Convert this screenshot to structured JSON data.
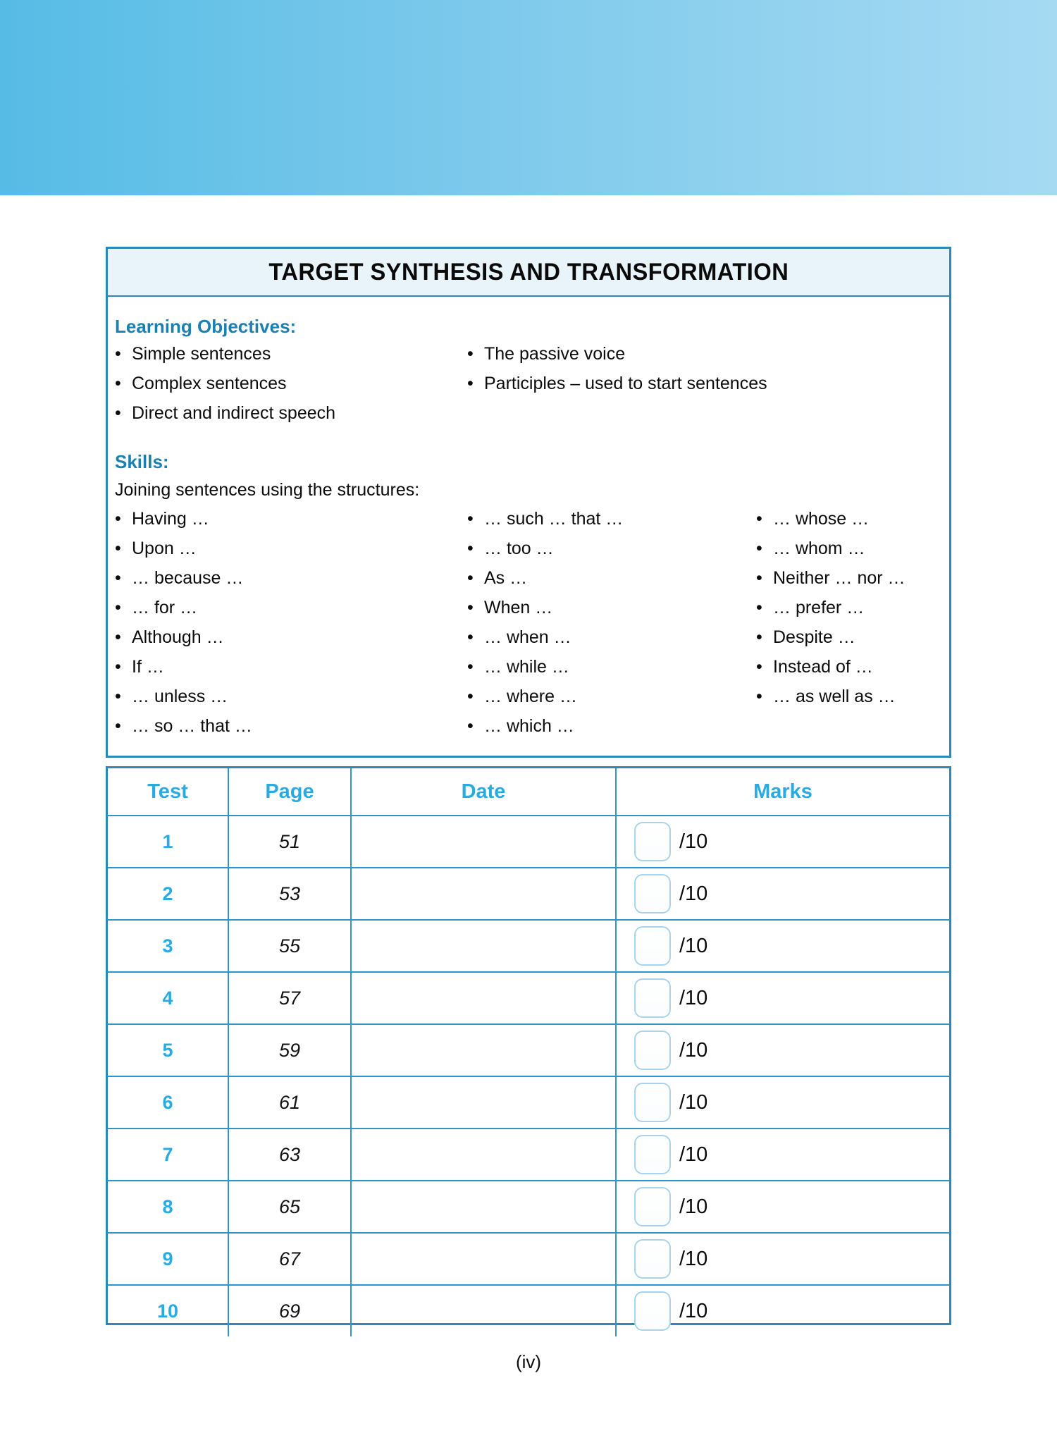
{
  "page": {
    "footer": "(iv)"
  },
  "panel": {
    "title": "TARGET SYNTHESIS AND TRANSFORMATION",
    "learning_objectives": {
      "heading": "Learning Objectives:",
      "col1": [
        "Simple sentences",
        "Complex sentences",
        "Direct and indirect speech"
      ],
      "col2": [
        "The passive voice",
        "Participles – used to start sentences"
      ]
    },
    "skills": {
      "heading": "Skills:",
      "intro": "Joining sentences using the structures:",
      "col1": [
        "Having …",
        "Upon …",
        "… because …",
        "… for …",
        "Although …",
        "If …",
        "… unless …",
        "… so … that …"
      ],
      "col2": [
        "… such … that …",
        "… too …",
        "As …",
        "When …",
        "… when …",
        "… while …",
        "… where …",
        "… which …"
      ],
      "col3": [
        "… whose …",
        "… whom …",
        "Neither … nor …",
        "… prefer …",
        "Despite …",
        "Instead of …",
        "… as well as …"
      ]
    }
  },
  "table": {
    "headers": [
      "Test",
      "Page",
      "Date",
      "Marks"
    ],
    "rows": [
      {
        "test": "1",
        "page": "51",
        "date": "",
        "marks": "/10"
      },
      {
        "test": "2",
        "page": "53",
        "date": "",
        "marks": "/10"
      },
      {
        "test": "3",
        "page": "55",
        "date": "",
        "marks": "/10"
      },
      {
        "test": "4",
        "page": "57",
        "date": "",
        "marks": "/10"
      },
      {
        "test": "5",
        "page": "59",
        "date": "",
        "marks": "/10"
      },
      {
        "test": "6",
        "page": "61",
        "date": "",
        "marks": "/10"
      },
      {
        "test": "7",
        "page": "63",
        "date": "",
        "marks": "/10"
      },
      {
        "test": "8",
        "page": "65",
        "date": "",
        "marks": "/10"
      },
      {
        "test": "9",
        "page": "67",
        "date": "",
        "marks": "/10"
      },
      {
        "test": "10",
        "page": "69",
        "date": "",
        "marks": "/10"
      }
    ]
  },
  "colors": {
    "banner_left": "#56BCE5",
    "banner_right": "#A6DAF3",
    "border_outer": "#2E87B9",
    "table_lines": "#3095CB",
    "title_bar_bg": "#E9F3FA",
    "bright_blue_text": "#29ABE2",
    "heading_blue_text": "#1B7FB2",
    "marks_box_border": "#A8D4EE"
  }
}
